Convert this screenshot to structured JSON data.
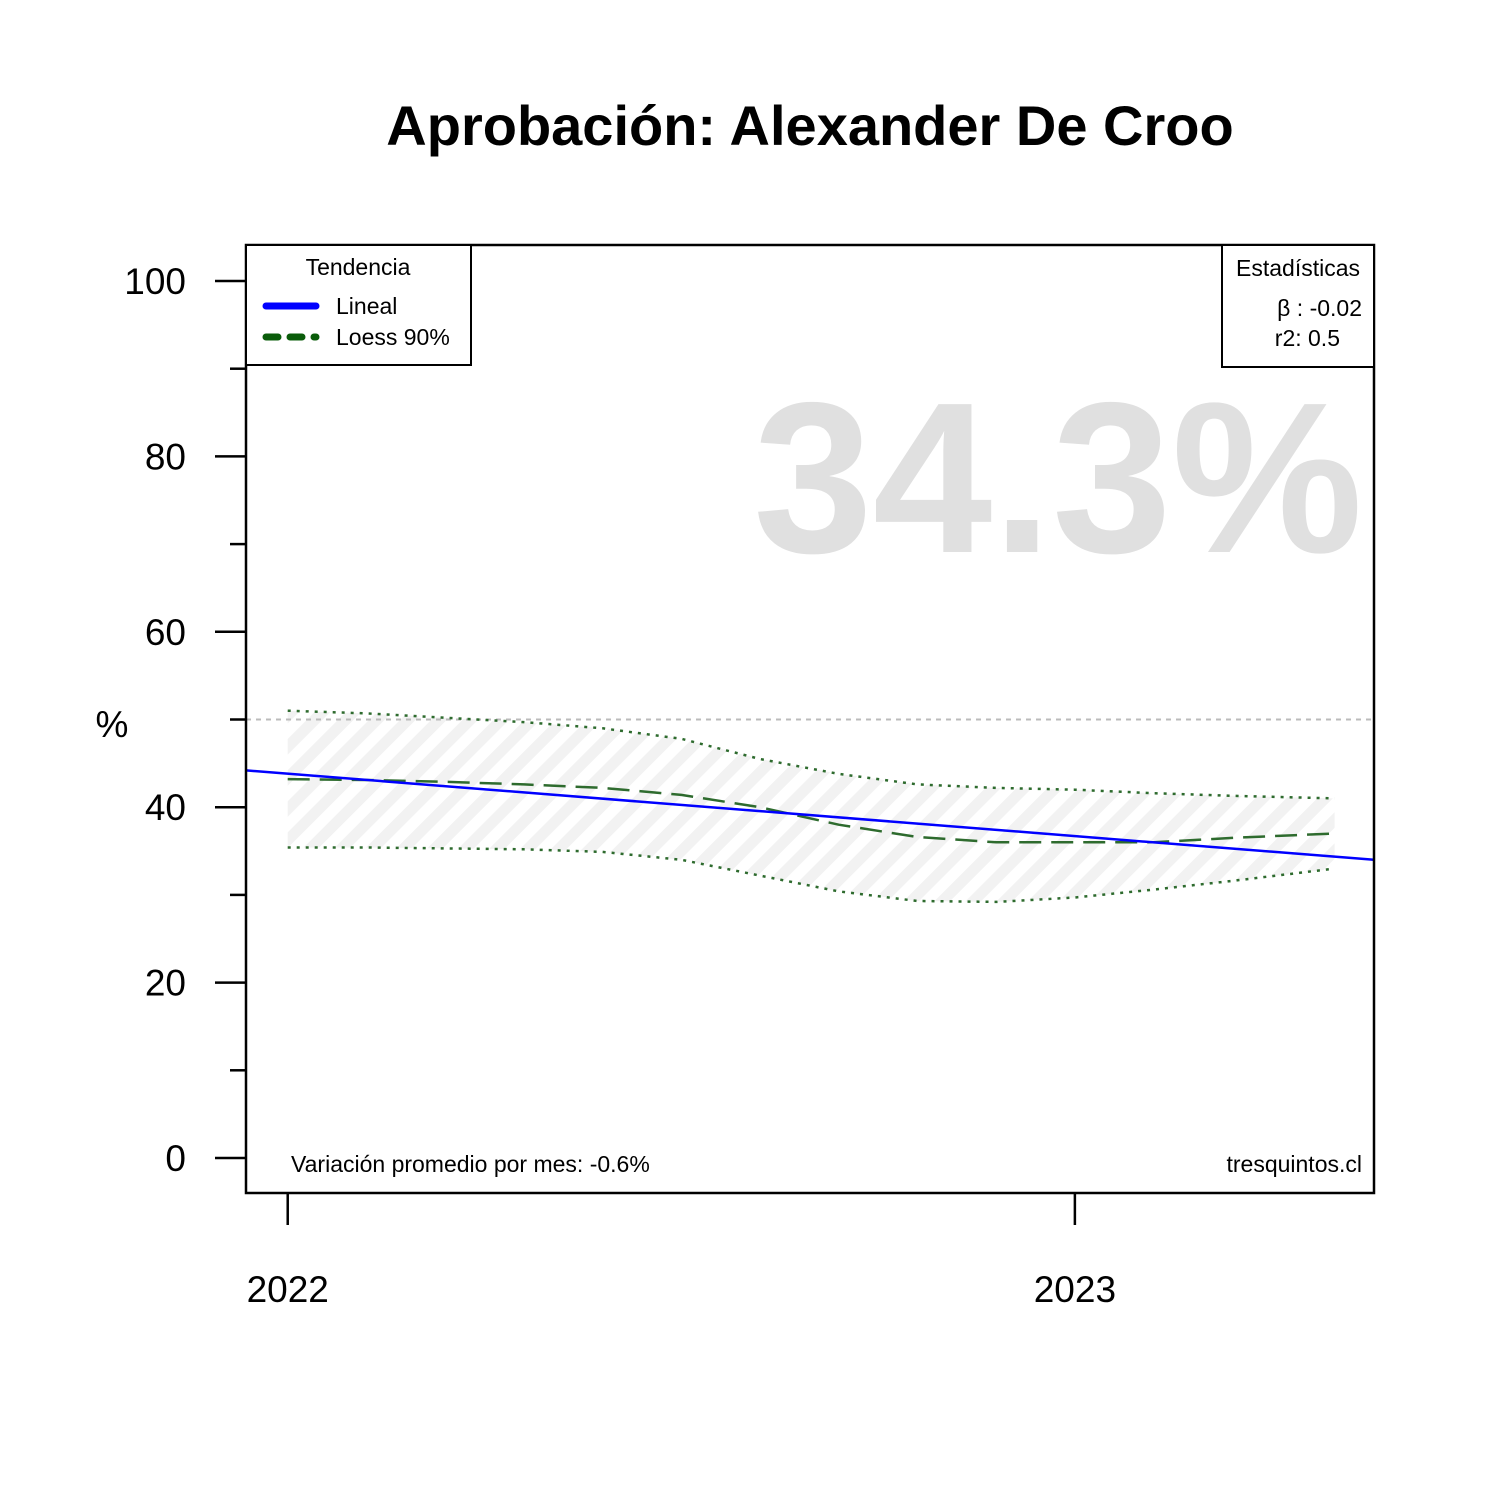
{
  "chart_data": {
    "type": "line",
    "title": "Aprobación: Alexander De Croo",
    "ylabel": "%",
    "xlabel": "",
    "ylim": [
      0,
      100
    ],
    "y_ticks": [
      0,
      20,
      40,
      60,
      80,
      100
    ],
    "y_minor_ticks": [
      10,
      30,
      50,
      70,
      90
    ],
    "x_ticks": [
      {
        "value": 2022.0,
        "label": "2022"
      },
      {
        "value": 2023.0,
        "label": "2023"
      }
    ],
    "xlim": [
      2021.947,
      2023.38
    ],
    "reference_line": {
      "y": 50,
      "color": "#bbbbbb",
      "style": "dotted"
    },
    "watermark_value": "34.3%",
    "legend": {
      "title": "Tendencia",
      "position": "top-left",
      "items": [
        {
          "label": "Lineal",
          "color": "#0000ff",
          "style": "solid"
        },
        {
          "label": "Loess 90%",
          "color": "#0a5c0a",
          "style": "dashed"
        }
      ]
    },
    "stats_box": {
      "title": "Estadísticas",
      "position": "top-right",
      "lines": [
        "β : -0.02",
        "r2: 0.5"
      ]
    },
    "footnote_left": "Variación promedio por mes: -0.6%",
    "footnote_right": "tresquintos.cl",
    "series": [
      {
        "name": "Lineal",
        "color": "#0000ff",
        "style": "solid",
        "x": [
          2021.947,
          2023.38
        ],
        "y": [
          44.2,
          34.0
        ]
      },
      {
        "name": "Loess 90%",
        "color": "#2e6b2e",
        "style": "dashed",
        "x": [
          2022.0,
          2022.1,
          2022.2,
          2022.3,
          2022.4,
          2022.5,
          2022.6,
          2022.7,
          2022.8,
          2022.9,
          2023.0,
          2023.1,
          2023.2,
          2023.33
        ],
        "y": [
          43.2,
          43.1,
          42.9,
          42.6,
          42.2,
          41.4,
          40.0,
          38.0,
          36.6,
          36.0,
          36.0,
          36.0,
          36.5,
          37.0
        ],
        "upper": [
          51.0,
          50.7,
          50.2,
          49.7,
          49.0,
          47.8,
          45.5,
          43.8,
          42.6,
          42.2,
          42.0,
          41.6,
          41.3,
          41.0
        ],
        "lower": [
          35.4,
          35.4,
          35.3,
          35.2,
          34.9,
          34.0,
          32.2,
          30.4,
          29.3,
          29.2,
          29.7,
          30.6,
          31.6,
          33.0
        ]
      }
    ]
  }
}
